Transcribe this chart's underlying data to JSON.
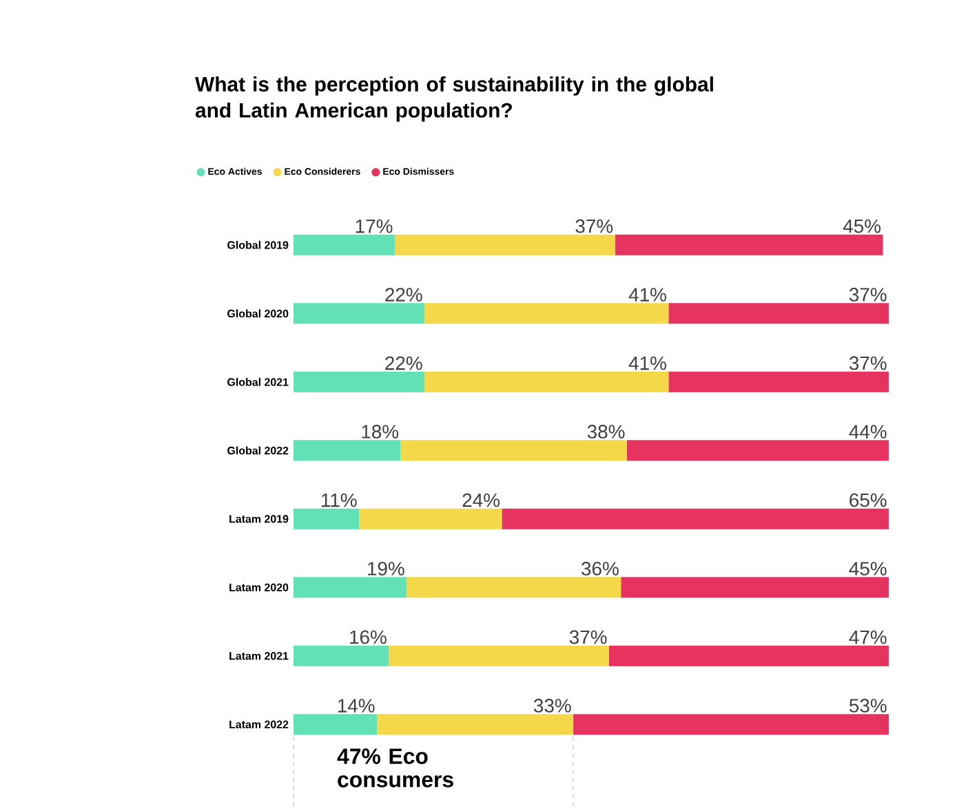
{
  "chart_data": {
    "type": "bar",
    "orientation": "horizontal",
    "stacked": true,
    "title": "What is the perception of sustainability in the global and Latin American population?",
    "categories": [
      "Global 2019",
      "Global 2020",
      "Global 2021",
      "Global 2022",
      "Latam 2019",
      "Latam 2020",
      "Latam 2021",
      "Latam 2022"
    ],
    "xlim": [
      0,
      100
    ],
    "tick_labels": "y",
    "series": [
      {
        "name": "Eco Actives",
        "color": "#62e0b6",
        "values": [
          17,
          22,
          22,
          18,
          11,
          19,
          16,
          14
        ],
        "value_labels": [
          "17%",
          "22%",
          "22%",
          "18%",
          "11%",
          "19%",
          "16%",
          "14%"
        ]
      },
      {
        "name": "Eco Considerers",
        "color": "#f5d84a",
        "values": [
          37,
          41,
          41,
          38,
          24,
          36,
          37,
          33
        ],
        "value_labels": [
          "37%",
          "41%",
          "41%",
          "38%",
          "24%",
          "36%",
          "37%",
          "33%"
        ]
      },
      {
        "name": "Eco Dismissers",
        "color": "#e6335f",
        "values": [
          45,
          37,
          37,
          44,
          65,
          45,
          47,
          53
        ],
        "value_labels": [
          "45%",
          "37%",
          "37%",
          "44%",
          "65%",
          "45%",
          "47%",
          "53%"
        ]
      }
    ],
    "legend": "top left",
    "annotations": [
      "47% Eco consumers"
    ]
  }
}
